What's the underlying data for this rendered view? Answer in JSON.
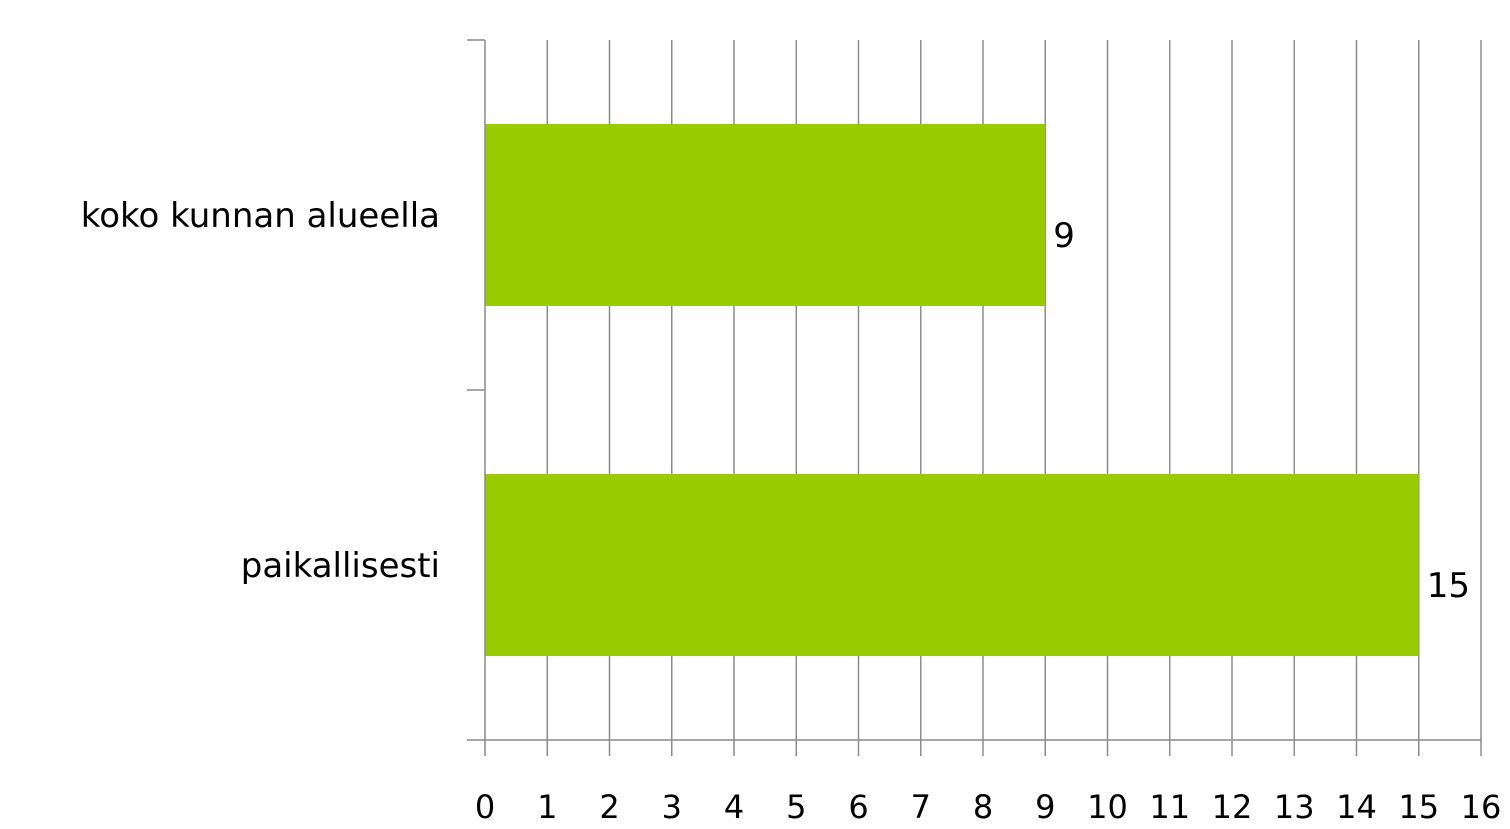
{
  "chart_data": {
    "type": "bar",
    "orientation": "horizontal",
    "categories": [
      "koko kunnan alueella",
      "paikallisesti"
    ],
    "values": [
      9,
      15
    ],
    "data_labels": [
      "9",
      "15"
    ],
    "xlim": [
      0,
      16
    ],
    "x_ticks": [
      "0",
      "1",
      "2",
      "3",
      "4",
      "5",
      "6",
      "7",
      "8",
      "9",
      "10",
      "11",
      "12",
      "13",
      "14",
      "15",
      "16"
    ],
    "grid": "vertical",
    "legend": "none",
    "colors": {
      "bar": "#99cc00",
      "grid": "#8c8c8c",
      "text": "#000000"
    }
  }
}
